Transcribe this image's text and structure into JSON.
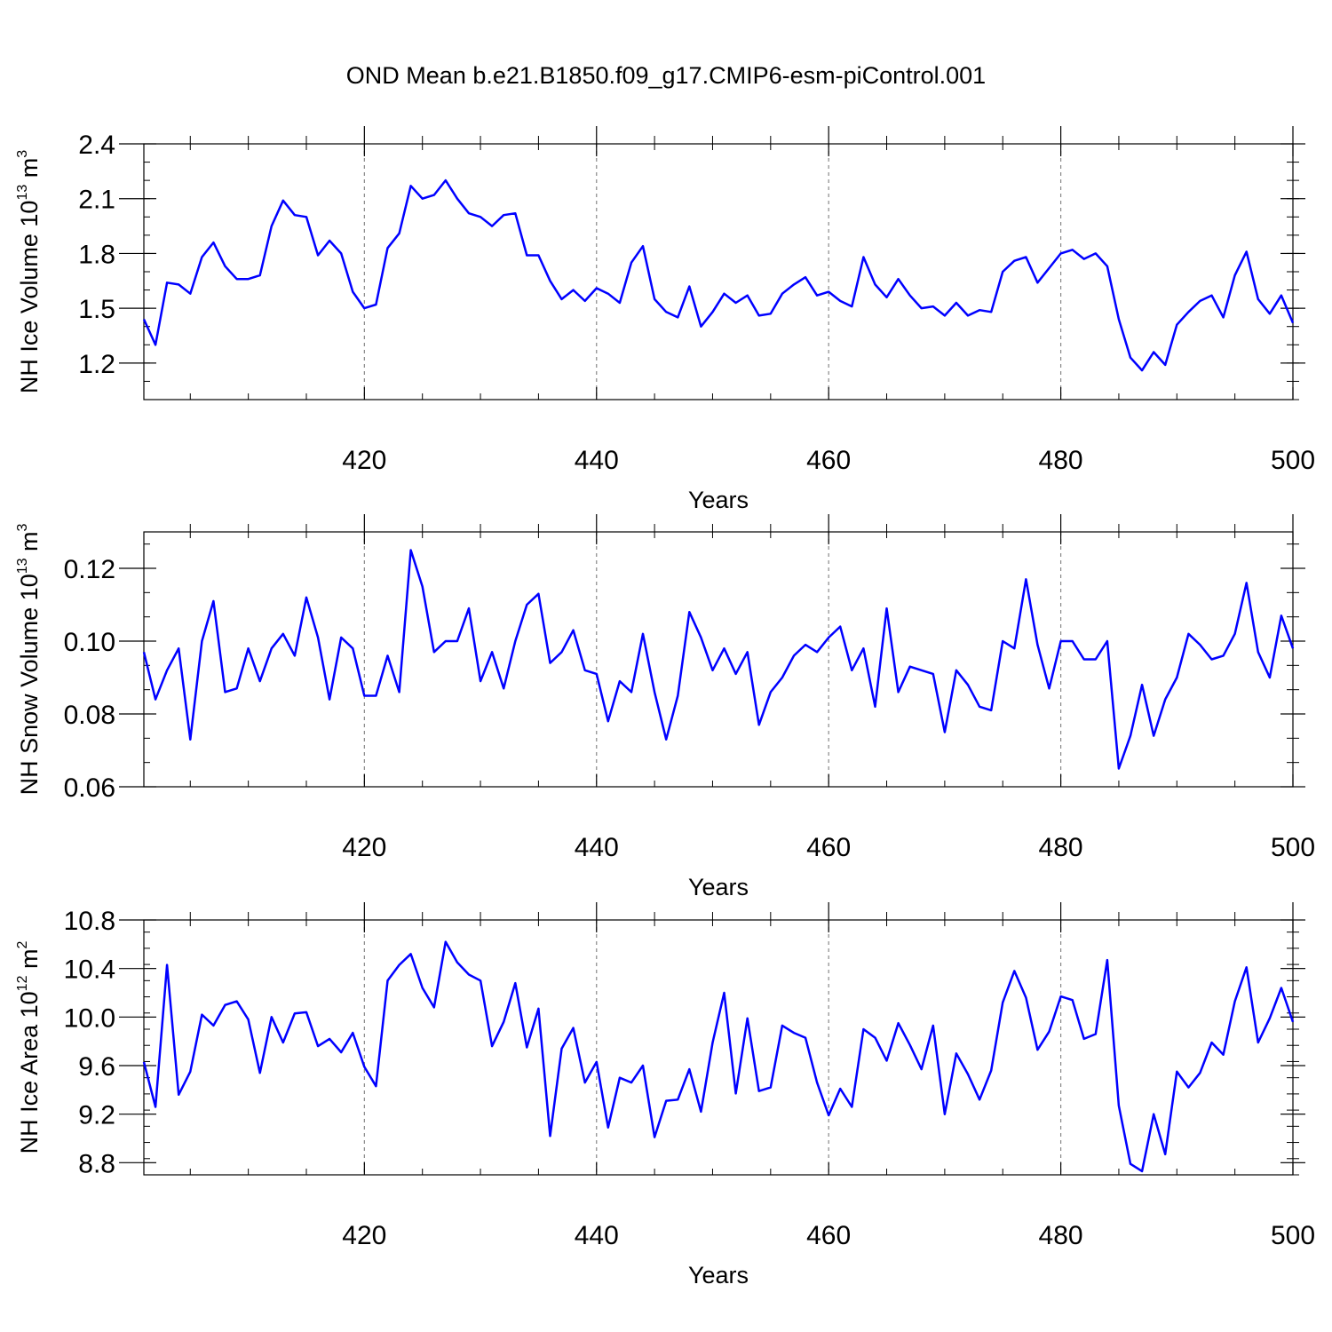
{
  "title": "OND Mean b.e21.B1850.f09_g17.CMIP6-esm-piControl.001",
  "line_color": "#0000ff",
  "chart_data": [
    {
      "type": "line",
      "title": "",
      "xlabel": "Years",
      "ylabel": "NH Ice Volume 10",
      "ylabel_sup": "13",
      "ylabel_unit": "m",
      "ylabel_unit_sup": "3",
      "xlim": [
        401,
        500
      ],
      "ylim": [
        1.0,
        2.4
      ],
      "xticks": [
        420,
        440,
        460,
        480,
        500
      ],
      "yticks": [
        1.2,
        1.5,
        1.8,
        2.1,
        2.4
      ],
      "ytick_labels": [
        "1.2",
        "1.5",
        "1.8",
        "2.1",
        "2.4"
      ],
      "grid": "vertical dashed at major x ticks",
      "series": [
        {
          "x": [
            401,
            402,
            403,
            404,
            405,
            406,
            407,
            408,
            409,
            410,
            411,
            412,
            413,
            414,
            415,
            416,
            417,
            418,
            419,
            420,
            421,
            422,
            423,
            424,
            425,
            426,
            427,
            428,
            429,
            430,
            431,
            432,
            433,
            434,
            435,
            436,
            437,
            438,
            439,
            440,
            441,
            442,
            443,
            444,
            445,
            446,
            447,
            448,
            449,
            450,
            451,
            452,
            453,
            454,
            455,
            456,
            457,
            458,
            459,
            460,
            461,
            462,
            463,
            464,
            465,
            466,
            467,
            468,
            469,
            470,
            471,
            472,
            473,
            474,
            475,
            476,
            477,
            478,
            479,
            480,
            481,
            482,
            483,
            484,
            485,
            486,
            487,
            488,
            489,
            490,
            491,
            492,
            493,
            494,
            495,
            496,
            497,
            498,
            499,
            500
          ],
          "values": [
            1.44,
            1.3,
            1.64,
            1.63,
            1.58,
            1.78,
            1.86,
            1.73,
            1.66,
            1.66,
            1.68,
            1.95,
            2.09,
            2.01,
            2.0,
            1.79,
            1.87,
            1.8,
            1.59,
            1.5,
            1.52,
            1.83,
            1.91,
            2.17,
            2.1,
            2.12,
            2.2,
            2.1,
            2.02,
            2.0,
            1.95,
            2.01,
            2.02,
            1.79,
            1.79,
            1.65,
            1.55,
            1.6,
            1.54,
            1.61,
            1.58,
            1.53,
            1.75,
            1.84,
            1.55,
            1.48,
            1.45,
            1.62,
            1.4,
            1.48,
            1.58,
            1.53,
            1.57,
            1.46,
            1.47,
            1.58,
            1.63,
            1.67,
            1.57,
            1.59,
            1.54,
            1.51,
            1.78,
            1.63,
            1.56,
            1.66,
            1.57,
            1.5,
            1.51,
            1.46,
            1.53,
            1.46,
            1.49,
            1.48,
            1.7,
            1.76,
            1.78,
            1.64,
            1.72,
            1.8,
            1.82,
            1.77,
            1.8,
            1.73,
            1.44,
            1.23,
            1.16,
            1.26,
            1.19,
            1.41,
            1.48,
            1.54,
            1.57,
            1.45,
            1.68,
            1.81,
            1.55,
            1.47,
            1.57,
            1.42
          ]
        }
      ]
    },
    {
      "type": "line",
      "title": "",
      "xlabel": "Years",
      "ylabel": "NH Snow Volume 10",
      "ylabel_sup": "13",
      "ylabel_unit": "m",
      "ylabel_unit_sup": "3",
      "xlim": [
        401,
        500
      ],
      "ylim": [
        0.06,
        0.13
      ],
      "xticks": [
        420,
        440,
        460,
        480,
        500
      ],
      "yticks": [
        0.06,
        0.08,
        0.1,
        0.12
      ],
      "ytick_labels": [
        "0.06",
        "0.08",
        "0.10",
        "0.12"
      ],
      "grid": "vertical dashed at major x ticks",
      "series": [
        {
          "x": [
            401,
            402,
            403,
            404,
            405,
            406,
            407,
            408,
            409,
            410,
            411,
            412,
            413,
            414,
            415,
            416,
            417,
            418,
            419,
            420,
            421,
            422,
            423,
            424,
            425,
            426,
            427,
            428,
            429,
            430,
            431,
            432,
            433,
            434,
            435,
            436,
            437,
            438,
            439,
            440,
            441,
            442,
            443,
            444,
            445,
            446,
            447,
            448,
            449,
            450,
            451,
            452,
            453,
            454,
            455,
            456,
            457,
            458,
            459,
            460,
            461,
            462,
            463,
            464,
            465,
            466,
            467,
            468,
            469,
            470,
            471,
            472,
            473,
            474,
            475,
            476,
            477,
            478,
            479,
            480,
            481,
            482,
            483,
            484,
            485,
            486,
            487,
            488,
            489,
            490,
            491,
            492,
            493,
            494,
            495,
            496,
            497,
            498,
            499,
            500
          ],
          "values": [
            0.097,
            0.084,
            0.092,
            0.098,
            0.073,
            0.1,
            0.111,
            0.086,
            0.087,
            0.098,
            0.089,
            0.098,
            0.102,
            0.096,
            0.112,
            0.101,
            0.084,
            0.101,
            0.098,
            0.085,
            0.085,
            0.096,
            0.086,
            0.125,
            0.115,
            0.097,
            0.1,
            0.1,
            0.109,
            0.089,
            0.097,
            0.087,
            0.1,
            0.11,
            0.113,
            0.094,
            0.097,
            0.103,
            0.092,
            0.091,
            0.078,
            0.089,
            0.086,
            0.102,
            0.086,
            0.073,
            0.085,
            0.108,
            0.101,
            0.092,
            0.098,
            0.091,
            0.097,
            0.077,
            0.086,
            0.09,
            0.096,
            0.099,
            0.097,
            0.101,
            0.104,
            0.092,
            0.098,
            0.082,
            0.109,
            0.086,
            0.093,
            0.092,
            0.091,
            0.075,
            0.092,
            0.088,
            0.082,
            0.081,
            0.1,
            0.098,
            0.117,
            0.099,
            0.087,
            0.1,
            0.1,
            0.095,
            0.095,
            0.1,
            0.065,
            0.074,
            0.088,
            0.074,
            0.084,
            0.09,
            0.102,
            0.099,
            0.095,
            0.096,
            0.102,
            0.116,
            0.097,
            0.09,
            0.107,
            0.098
          ]
        }
      ]
    },
    {
      "type": "line",
      "title": "",
      "xlabel": "Years",
      "ylabel": "NH Ice Area 10",
      "ylabel_sup": "12",
      "ylabel_unit": "m",
      "ylabel_unit_sup": "2",
      "xlim": [
        401,
        500
      ],
      "ylim": [
        8.7,
        10.8
      ],
      "xticks": [
        420,
        440,
        460,
        480,
        500
      ],
      "yticks": [
        8.8,
        9.2,
        9.6,
        10.0,
        10.4,
        10.8
      ],
      "ytick_labels": [
        "8.8",
        "9.2",
        "9.6",
        "10.0",
        "10.4",
        "10.8"
      ],
      "grid": "vertical dashed at major x ticks",
      "series": [
        {
          "x": [
            401,
            402,
            403,
            404,
            405,
            406,
            407,
            408,
            409,
            410,
            411,
            412,
            413,
            414,
            415,
            416,
            417,
            418,
            419,
            420,
            421,
            422,
            423,
            424,
            425,
            426,
            427,
            428,
            429,
            430,
            431,
            432,
            433,
            434,
            435,
            436,
            437,
            438,
            439,
            440,
            441,
            442,
            443,
            444,
            445,
            446,
            447,
            448,
            449,
            450,
            451,
            452,
            453,
            454,
            455,
            456,
            457,
            458,
            459,
            460,
            461,
            462,
            463,
            464,
            465,
            466,
            467,
            468,
            469,
            470,
            471,
            472,
            473,
            474,
            475,
            476,
            477,
            478,
            479,
            480,
            481,
            482,
            483,
            484,
            485,
            486,
            487,
            488,
            489,
            490,
            491,
            492,
            493,
            494,
            495,
            496,
            497,
            498,
            499,
            500
          ],
          "values": [
            9.63,
            9.26,
            10.43,
            9.36,
            9.55,
            10.02,
            9.93,
            10.1,
            10.13,
            9.98,
            9.54,
            10.0,
            9.79,
            10.03,
            10.04,
            9.76,
            9.82,
            9.71,
            9.87,
            9.59,
            9.43,
            10.3,
            10.43,
            10.52,
            10.24,
            10.08,
            10.62,
            10.45,
            10.35,
            10.3,
            9.76,
            9.96,
            10.28,
            9.75,
            10.07,
            9.02,
            9.74,
            9.91,
            9.46,
            9.63,
            9.09,
            9.5,
            9.46,
            9.6,
            9.01,
            9.31,
            9.32,
            9.57,
            9.22,
            9.79,
            10.2,
            9.37,
            9.99,
            9.39,
            9.42,
            9.93,
            9.87,
            9.83,
            9.46,
            9.19,
            9.41,
            9.26,
            9.9,
            9.83,
            9.64,
            9.95,
            9.77,
            9.57,
            9.93,
            9.2,
            9.7,
            9.53,
            9.32,
            9.56,
            10.12,
            10.38,
            10.16,
            9.73,
            9.88,
            10.17,
            10.14,
            9.82,
            9.86,
            10.47,
            9.27,
            8.79,
            8.73,
            9.2,
            8.87,
            9.55,
            9.42,
            9.54,
            9.79,
            9.69,
            10.13,
            10.41,
            9.79,
            9.99,
            10.24,
            9.96
          ]
        }
      ]
    }
  ]
}
